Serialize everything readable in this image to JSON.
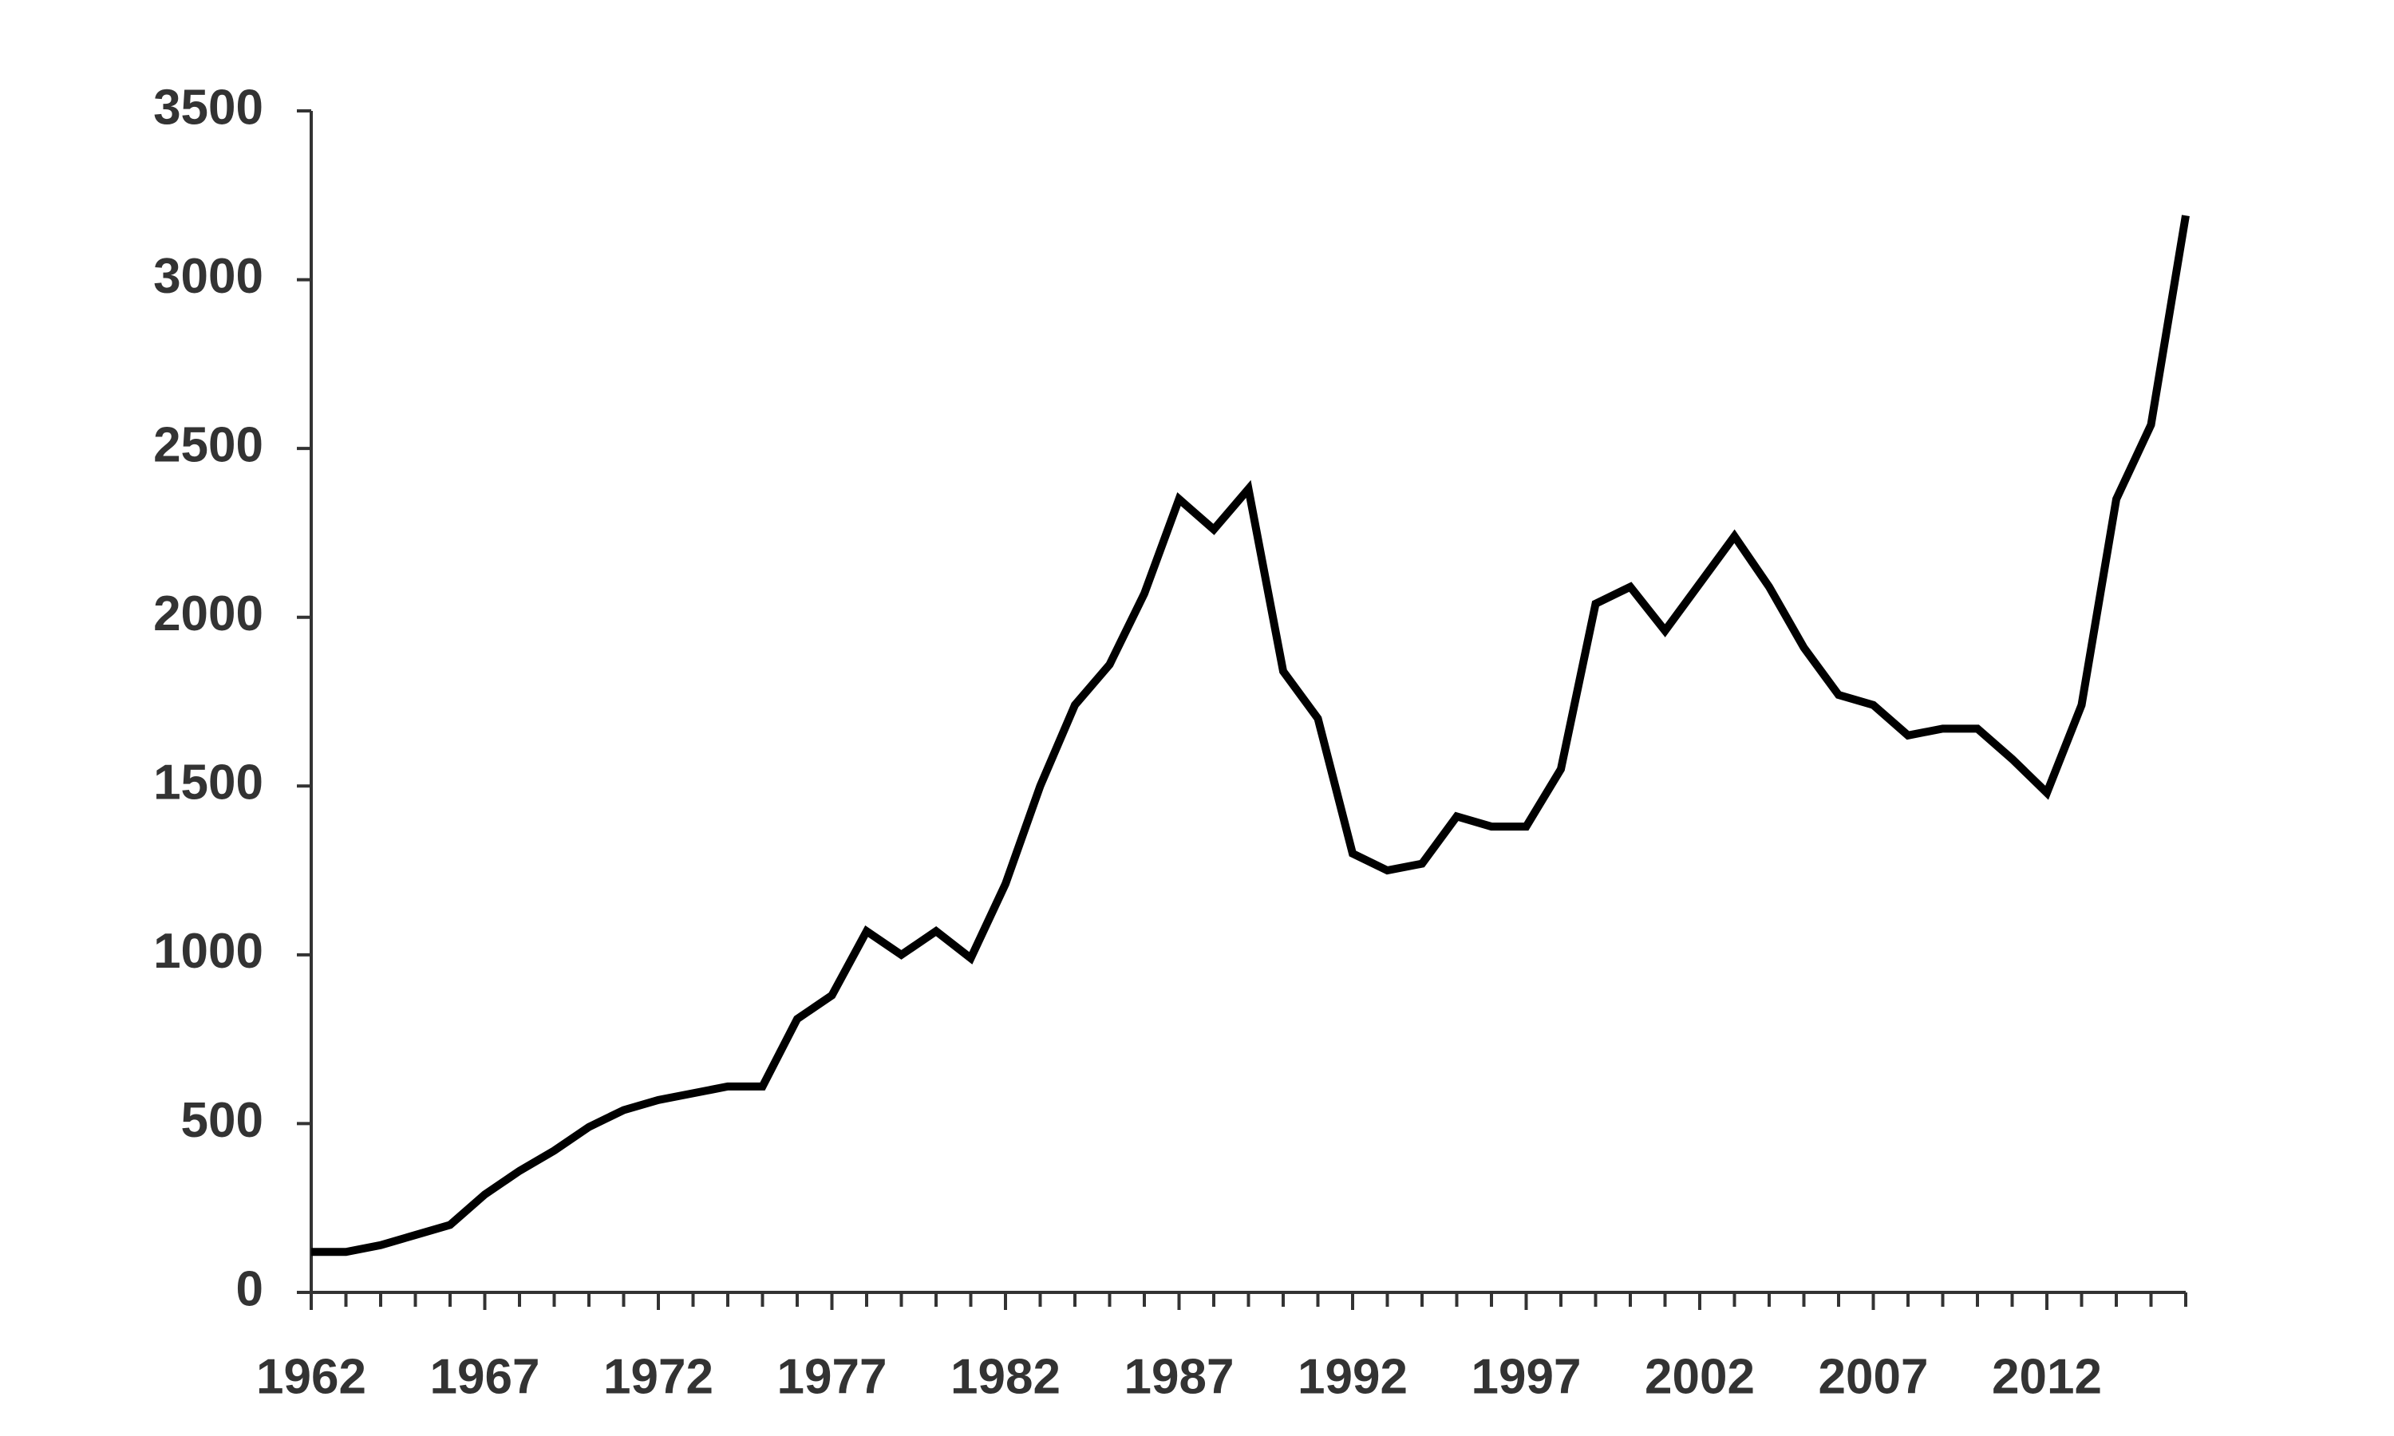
{
  "chart_data": {
    "type": "line",
    "x": [
      1962,
      1963,
      1964,
      1965,
      1966,
      1967,
      1968,
      1969,
      1970,
      1971,
      1972,
      1973,
      1974,
      1975,
      1976,
      1977,
      1978,
      1979,
      1980,
      1981,
      1982,
      1983,
      1984,
      1985,
      1986,
      1987,
      1988,
      1989,
      1990,
      1991,
      1992,
      1993,
      1994,
      1995,
      1996,
      1997,
      1998,
      1999,
      2000,
      2001,
      2002,
      2003,
      2004,
      2005,
      2006,
      2007,
      2008,
      2009,
      2010,
      2011,
      2012,
      2013,
      2014,
      2015,
      2016
    ],
    "series": [
      {
        "color": "#000000",
        "values": [
          120,
          120,
          140,
          170,
          200,
          290,
          360,
          420,
          490,
          540,
          570,
          590,
          610,
          610,
          810,
          880,
          1070,
          1000,
          1070,
          990,
          1210,
          1500,
          1740,
          1860,
          2070,
          2350,
          2260,
          2380,
          1840,
          1700,
          1300,
          1250,
          1270,
          1410,
          1380,
          1380,
          1550,
          2040,
          2090,
          1960,
          2100,
          2240,
          2090,
          1910,
          1770,
          1740,
          1650,
          1670,
          1670,
          1580,
          1480,
          1740,
          2350,
          2570,
          3190
        ]
      }
    ],
    "xlim": [
      1962,
      2016
    ],
    "xticks": [
      1962,
      1967,
      1972,
      1977,
      1982,
      1987,
      1992,
      1997,
      2002,
      2007,
      2012
    ],
    "ylim": [
      0,
      3500
    ],
    "yticks": [
      0,
      500,
      1000,
      1500,
      2000,
      2500,
      3000,
      3500
    ]
  }
}
